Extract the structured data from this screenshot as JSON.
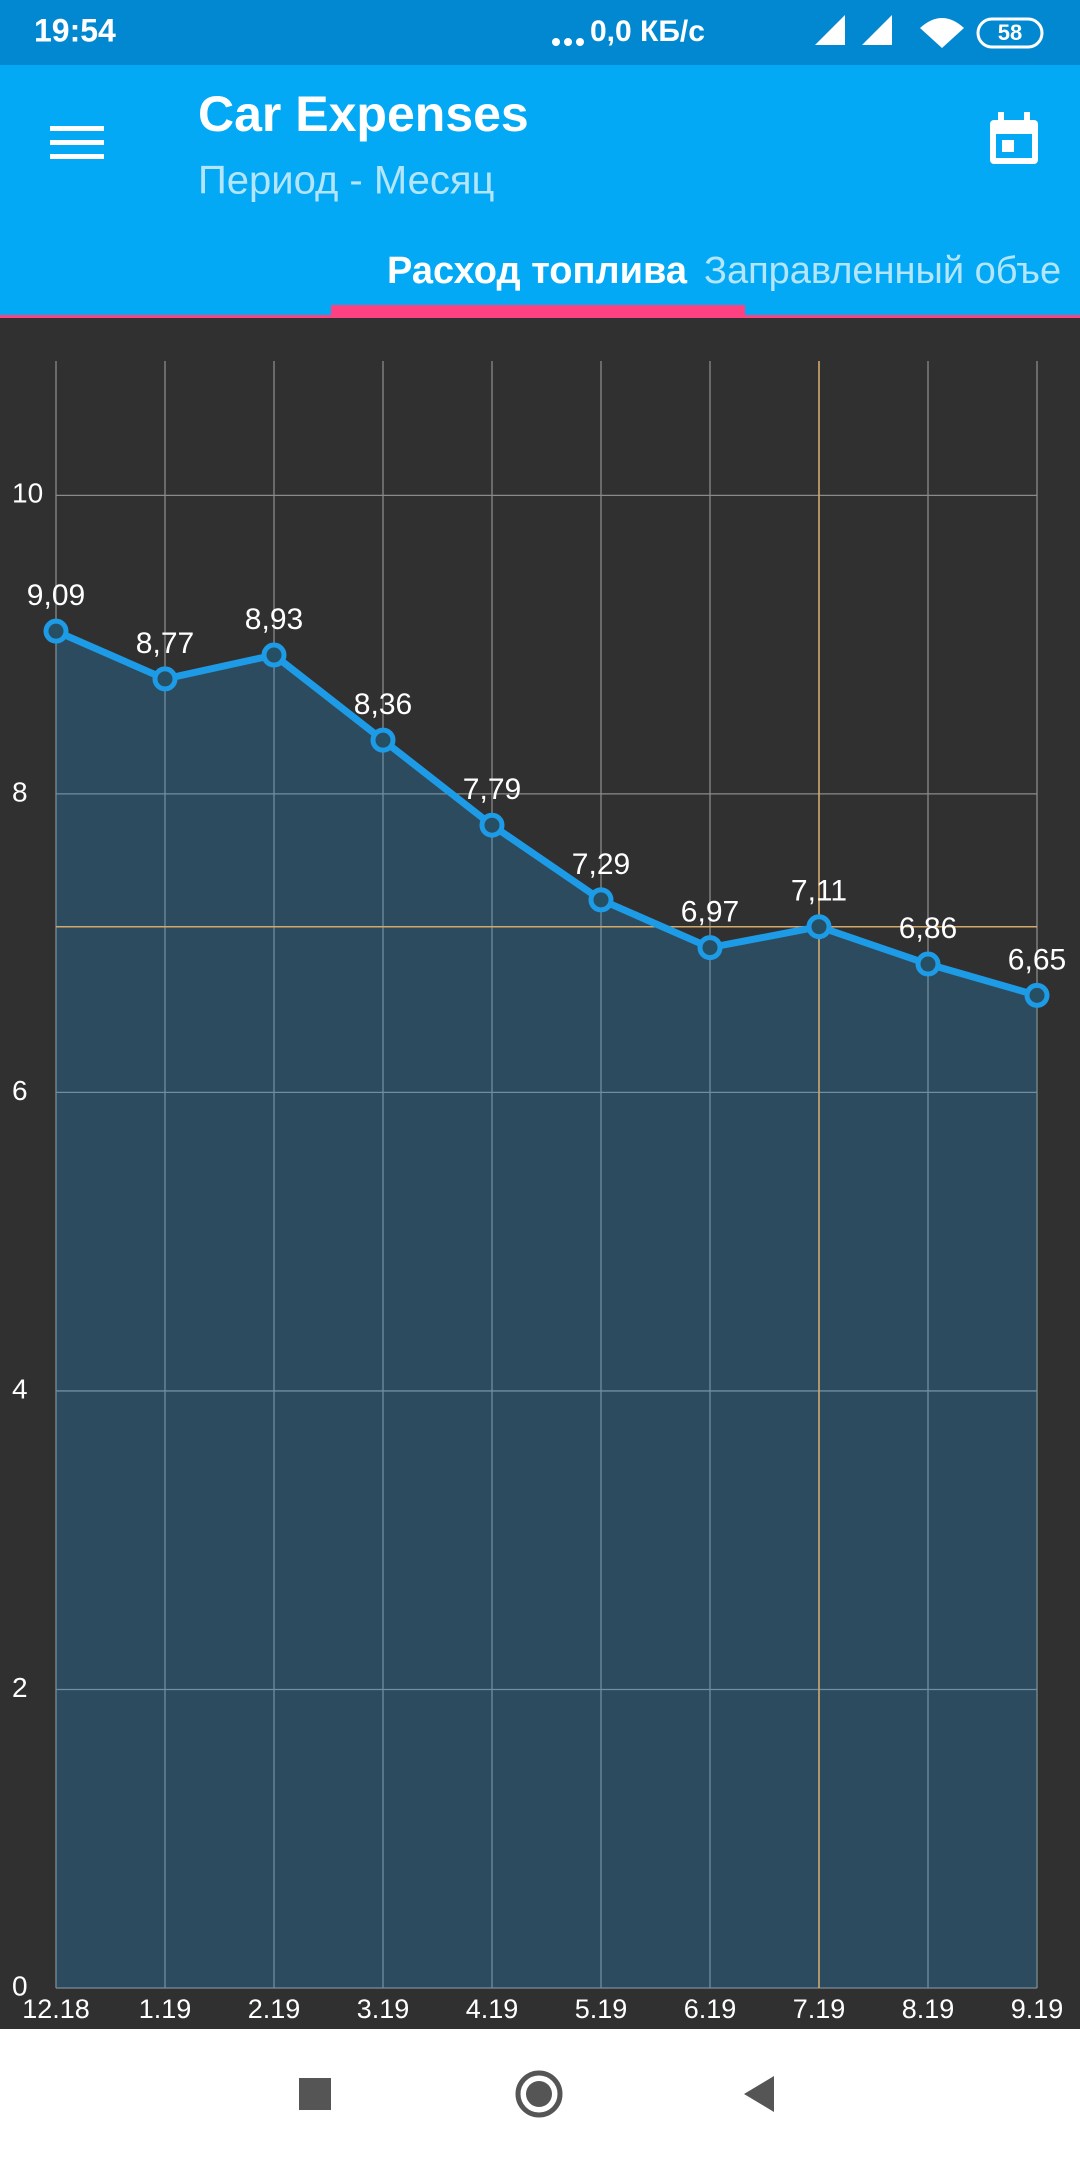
{
  "status_bar": {
    "time": "19:54",
    "network_speed": "0,0 КБ/с",
    "battery": "58"
  },
  "app_bar": {
    "title": "Car Expenses",
    "subtitle": "Период - Месяц"
  },
  "tabs": [
    "Расход топлива",
    "Заправленный объе"
  ],
  "chart_data": {
    "type": "line",
    "categories": [
      "12.18",
      "1.19",
      "2.19",
      "3.19",
      "4.19",
      "5.19",
      "6.19",
      "7.19",
      "8.19",
      "9.19"
    ],
    "series": [
      {
        "color": "#1e9be6",
        "values": [
          9.09,
          8.77,
          8.93,
          8.36,
          7.79,
          7.29,
          6.97,
          7.11,
          6.86,
          6.65
        ],
        "value_labels": [
          "9,09",
          "8,77",
          "8,93",
          "8,36",
          "7,79",
          "7,29",
          "6,97",
          "7,11",
          "6,86",
          "6,65"
        ]
      }
    ],
    "ylim": [
      0,
      10.9
    ],
    "yticks": [
      0,
      2,
      4,
      6,
      8,
      10
    ],
    "grid": true,
    "area": true,
    "highlight_index": 7
  }
}
